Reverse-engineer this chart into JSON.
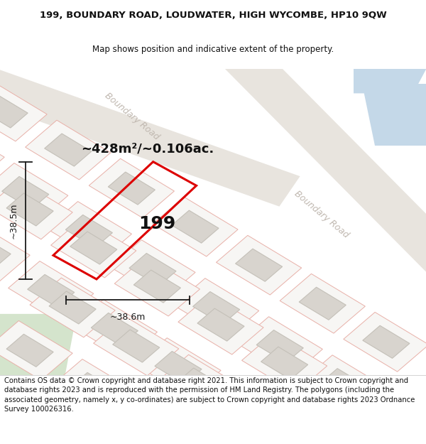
{
  "title": "199, BOUNDARY ROAD, LOUDWATER, HIGH WYCOMBE, HP10 9QW",
  "subtitle": "Map shows position and indicative extent of the property.",
  "footer": "Contains OS data © Crown copyright and database right 2021. This information is subject to Crown copyright and database rights 2023 and is reproduced with the permission of HM Land Registry. The polygons (including the associated geometry, namely x, y co-ordinates) are subject to Crown copyright and database rights 2023 Ordnance Survey 100026316.",
  "area_label": "~428m²/~0.106ac.",
  "property_number": "199",
  "width_label": "~38.6m",
  "height_label": "~38.5m",
  "map_bg": "#f7f6f4",
  "road_fill": "#e8e4de",
  "road_label_color": "#c0b8b0",
  "property_outline_color": "#dd0000",
  "building_fill": "#d8d4ce",
  "building_stroke": "#c4c0b8",
  "parcel_stroke": "#e8b0a8",
  "parcel_fill": "#f7f6f4",
  "dimension_color": "#1a1a1a",
  "blue_area_color": "#c4d8e8",
  "green_area_color": "#d4e4cc",
  "title_fontsize": 9.5,
  "subtitle_fontsize": 8.5,
  "footer_fontsize": 7.2,
  "area_label_fontsize": 13,
  "number_fontsize": 18,
  "dim_fontsize": 9,
  "road_label_fontsize": 9
}
